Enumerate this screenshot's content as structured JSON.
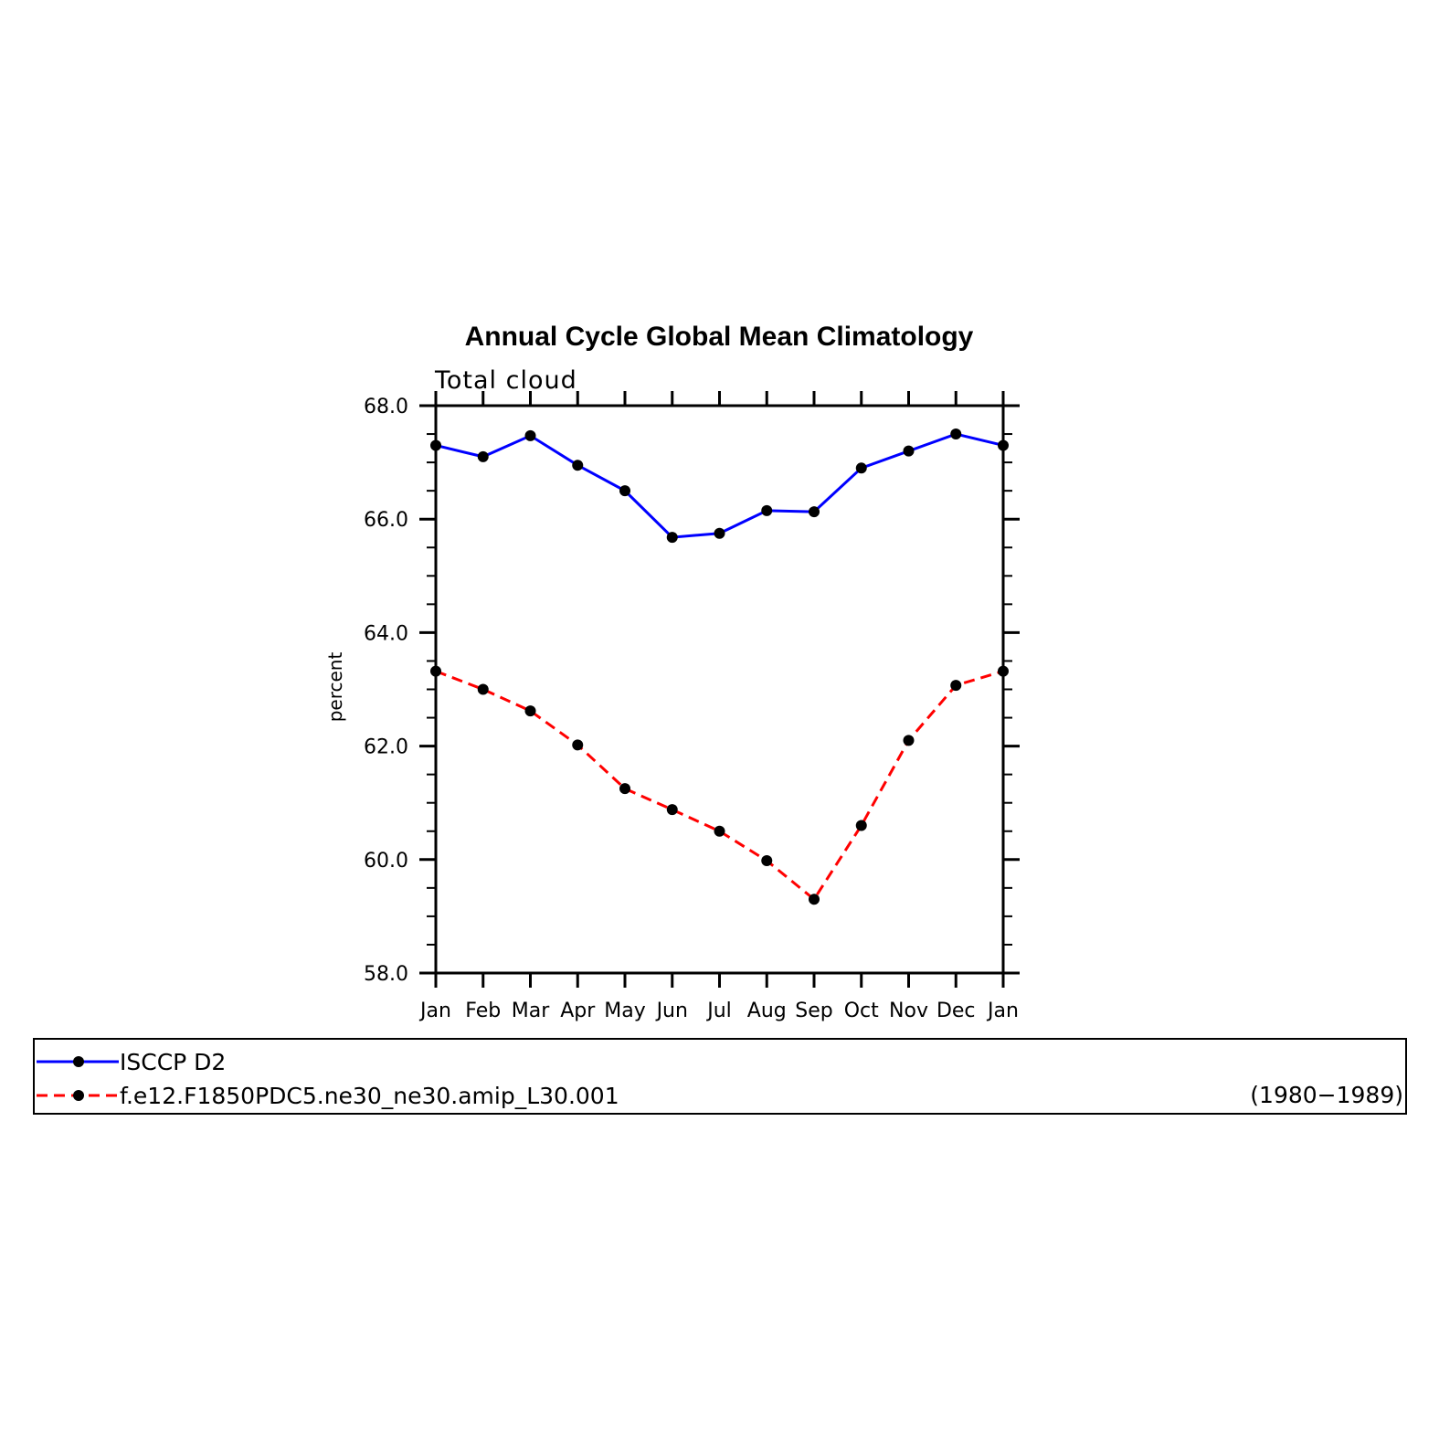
{
  "chart_data": {
    "type": "line",
    "title": "Annual Cycle Global Mean Climatology",
    "subtitle": "Total cloud",
    "xlabel": "",
    "ylabel": "percent",
    "categories": [
      "Jan",
      "Feb",
      "Mar",
      "Apr",
      "May",
      "Jun",
      "Jul",
      "Aug",
      "Sep",
      "Oct",
      "Nov",
      "Dec",
      "Jan"
    ],
    "ylim": [
      58.0,
      68.0
    ],
    "yticks": [
      "58.0",
      "60.0",
      "62.0",
      "64.0",
      "66.0",
      "68.0"
    ],
    "grid": false,
    "legend_position": "bottom",
    "series": [
      {
        "name": "ISCCP D2",
        "color": "#0000ff",
        "dash": "solid",
        "values": [
          67.3,
          67.1,
          67.47,
          66.95,
          66.5,
          65.68,
          65.75,
          66.15,
          66.13,
          66.9,
          67.2,
          67.5,
          67.3
        ]
      },
      {
        "name": "f.e12.F1850PDC5.ne30_ne30.amip_L30.001",
        "color": "#ff0000",
        "dash": "dashed",
        "values": [
          63.32,
          63.0,
          62.62,
          62.02,
          61.25,
          60.88,
          60.5,
          59.98,
          59.3,
          60.6,
          62.1,
          63.07,
          63.32
        ]
      }
    ],
    "legend_note": "(1980−1989)"
  }
}
